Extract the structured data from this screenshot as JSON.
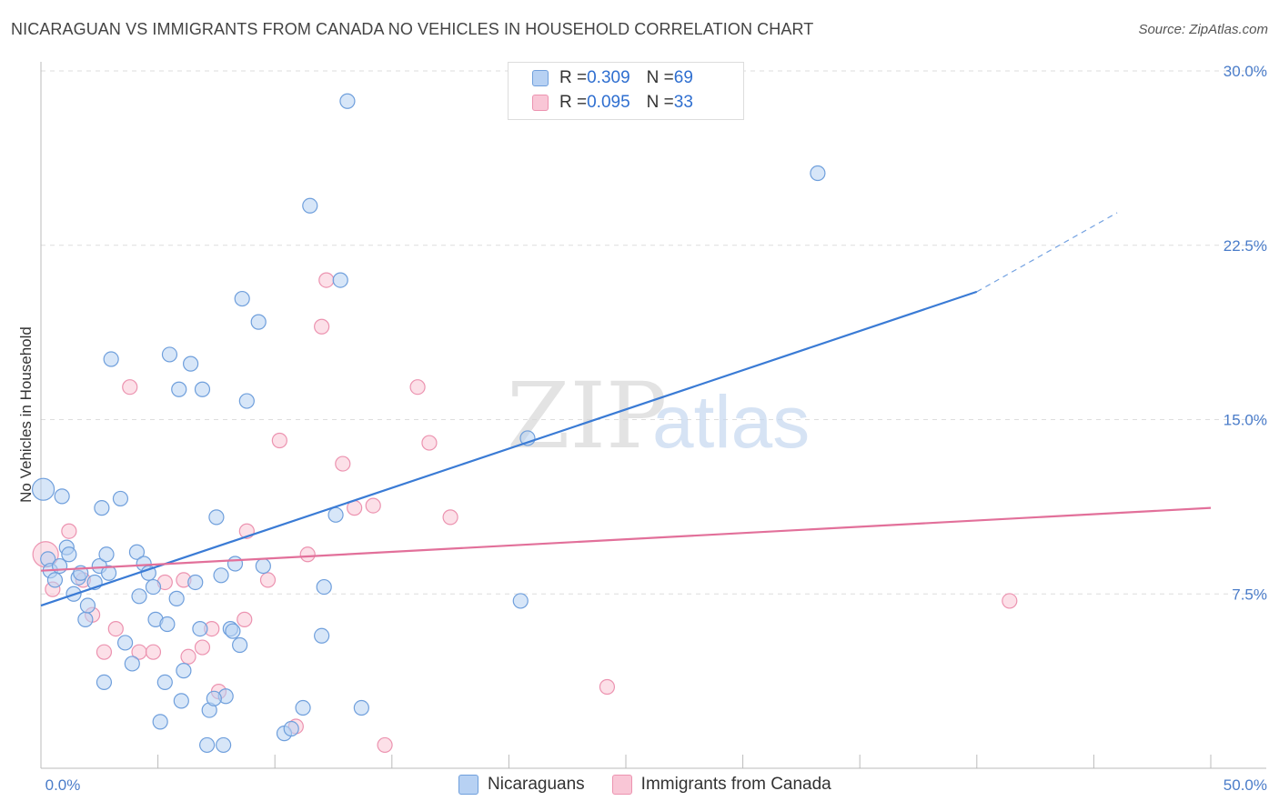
{
  "header": {
    "title": "NICARAGUAN VS IMMIGRANTS FROM CANADA NO VEHICLES IN HOUSEHOLD CORRELATION CHART",
    "source": "Source: ZipAtlas.com"
  },
  "legend_stats": [
    {
      "r_label": "R = ",
      "r_value": "0.309",
      "n_label": "N = ",
      "n_value": "69"
    },
    {
      "r_label": "R = ",
      "r_value": "0.095",
      "n_label": "N = ",
      "n_value": "33"
    }
  ],
  "watermark": {
    "part1": "ZIP",
    "part2": "atlas"
  },
  "colors": {
    "blue": "#3a7bd5",
    "blue_fill": "#b7d1f3",
    "pink": "#e2709a",
    "pink_fill": "#f9c6d6",
    "grid": "#dddddd"
  },
  "chart_data": {
    "type": "scatter",
    "title": "NICARAGUAN VS IMMIGRANTS FROM CANADA NO VEHICLES IN HOUSEHOLD CORRELATION CHART",
    "xlabel": "",
    "ylabel": "No Vehicles in Household",
    "xlim": [
      0,
      50
    ],
    "ylim": [
      0,
      30
    ],
    "x_tick_labels": [
      "0.0%",
      "50.0%"
    ],
    "y_ticks": [
      7.5,
      15.0,
      22.5,
      30.0
    ],
    "y_tick_labels": [
      "7.5%",
      "15.0%",
      "22.5%",
      "30.0%"
    ],
    "legend": [
      "Nicaraguans",
      "Immigrants from Canada"
    ],
    "series": [
      {
        "name": "Nicaraguans",
        "color": "#3a7bd5",
        "trend": {
          "x0": 0,
          "y0": 7.0,
          "x1": 40,
          "y1": 20.5,
          "dashed_to_x": 46,
          "dashed_to_y": 23.9
        },
        "points": [
          [
            0.1,
            12.0
          ],
          [
            0.3,
            9.0
          ],
          [
            0.4,
            8.5
          ],
          [
            0.6,
            8.1
          ],
          [
            0.8,
            8.7
          ],
          [
            0.9,
            11.7
          ],
          [
            1.1,
            9.5
          ],
          [
            1.2,
            9.2
          ],
          [
            1.4,
            7.5
          ],
          [
            1.6,
            8.2
          ],
          [
            1.7,
            8.4
          ],
          [
            1.9,
            6.4
          ],
          [
            2.0,
            7.0
          ],
          [
            2.3,
            8.0
          ],
          [
            2.5,
            8.7
          ],
          [
            2.6,
            11.2
          ],
          [
            2.8,
            9.2
          ],
          [
            2.9,
            8.4
          ],
          [
            3.4,
            11.6
          ],
          [
            3.6,
            5.4
          ],
          [
            3.0,
            17.6
          ],
          [
            2.7,
            3.7
          ],
          [
            3.9,
            4.5
          ],
          [
            4.1,
            9.3
          ],
          [
            4.2,
            7.4
          ],
          [
            4.4,
            8.8
          ],
          [
            4.6,
            8.4
          ],
          [
            4.8,
            7.8
          ],
          [
            4.9,
            6.4
          ],
          [
            5.3,
            3.7
          ],
          [
            5.1,
            2.0
          ],
          [
            5.4,
            6.2
          ],
          [
            5.5,
            17.8
          ],
          [
            5.8,
            7.3
          ],
          [
            5.9,
            16.3
          ],
          [
            6.0,
            2.9
          ],
          [
            6.1,
            4.2
          ],
          [
            6.4,
            17.4
          ],
          [
            6.6,
            8.0
          ],
          [
            6.8,
            6.0
          ],
          [
            6.9,
            16.3
          ],
          [
            7.1,
            1.0
          ],
          [
            7.2,
            2.5
          ],
          [
            7.5,
            10.8
          ],
          [
            7.7,
            8.3
          ],
          [
            7.9,
            3.1
          ],
          [
            7.4,
            3.0
          ],
          [
            7.8,
            1.0
          ],
          [
            8.1,
            6.0
          ],
          [
            8.2,
            5.9
          ],
          [
            8.5,
            5.3
          ],
          [
            8.3,
            8.8
          ],
          [
            8.6,
            20.2
          ],
          [
            8.8,
            15.8
          ],
          [
            9.3,
            19.2
          ],
          [
            9.5,
            8.7
          ],
          [
            10.4,
            1.5
          ],
          [
            10.7,
            1.7
          ],
          [
            11.2,
            2.6
          ],
          [
            11.5,
            24.2
          ],
          [
            12.0,
            5.7
          ],
          [
            12.1,
            7.8
          ],
          [
            12.6,
            10.9
          ],
          [
            12.8,
            21.0
          ],
          [
            13.1,
            28.7
          ],
          [
            13.7,
            2.6
          ],
          [
            20.5,
            7.2
          ],
          [
            20.8,
            14.2
          ],
          [
            33.2,
            25.6
          ]
        ]
      },
      {
        "name": "Immigrants from Canada",
        "color": "#e2709a",
        "trend": {
          "x0": 0,
          "y0": 8.5,
          "x1": 50,
          "y1": 11.2
        },
        "points": [
          [
            0.2,
            9.2
          ],
          [
            0.5,
            7.7
          ],
          [
            1.2,
            10.2
          ],
          [
            1.8,
            8.1
          ],
          [
            2.2,
            6.6
          ],
          [
            2.7,
            5.0
          ],
          [
            3.2,
            6.0
          ],
          [
            3.8,
            16.4
          ],
          [
            4.2,
            5.0
          ],
          [
            4.8,
            5.0
          ],
          [
            5.3,
            8.0
          ],
          [
            6.1,
            8.1
          ],
          [
            6.3,
            4.8
          ],
          [
            6.9,
            5.2
          ],
          [
            7.3,
            6.0
          ],
          [
            7.6,
            3.3
          ],
          [
            8.7,
            6.4
          ],
          [
            8.8,
            10.2
          ],
          [
            9.7,
            8.1
          ],
          [
            10.2,
            14.1
          ],
          [
            10.9,
            1.8
          ],
          [
            11.4,
            9.2
          ],
          [
            12.0,
            19.0
          ],
          [
            12.2,
            21.0
          ],
          [
            12.9,
            13.1
          ],
          [
            13.4,
            11.2
          ],
          [
            14.2,
            11.3
          ],
          [
            14.7,
            1.0
          ],
          [
            16.1,
            16.4
          ],
          [
            16.6,
            14.0
          ],
          [
            17.5,
            10.8
          ],
          [
            24.2,
            3.5
          ],
          [
            41.4,
            7.2
          ]
        ]
      }
    ]
  }
}
